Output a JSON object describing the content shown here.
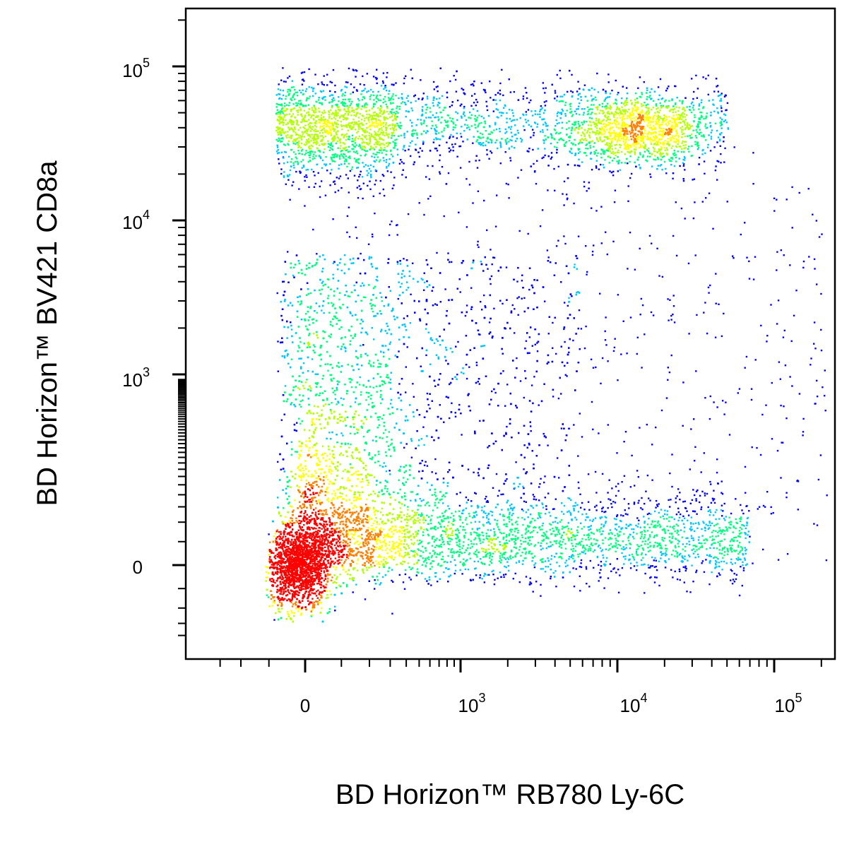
{
  "chart_data": {
    "type": "scatter",
    "title": "",
    "xlabel": "BD Horizon™ RB780  Ly-6C",
    "ylabel": "BD Horizon™ BV421  CD8a",
    "x_scale": "biexponential",
    "y_scale": "biexponential",
    "grid": false,
    "legend": "none",
    "x_ticks": [
      {
        "value": 0,
        "base": "0",
        "exp": ""
      },
      {
        "value": 1000,
        "base": "10",
        "exp": "3"
      },
      {
        "value": 10000,
        "base": "10",
        "exp": "4"
      },
      {
        "value": 100000,
        "base": "10",
        "exp": "5"
      }
    ],
    "y_ticks": [
      {
        "value": 0,
        "base": "0",
        "exp": ""
      },
      {
        "value": 1000,
        "base": "10",
        "exp": "3"
      },
      {
        "value": 10000,
        "base": "10",
        "exp": "4"
      },
      {
        "value": 100000,
        "base": "10",
        "exp": "5"
      }
    ],
    "density_colors": [
      "#0000ff",
      "#00c8ff",
      "#00ff80",
      "#b4ff00",
      "#ffff00",
      "#ff8000",
      "#ff0000"
    ],
    "populations": [
      {
        "x_center": -20,
        "y_center": 0,
        "count": 9000,
        "density": "highest"
      },
      {
        "x_center": 30000,
        "y_center": 40000,
        "count": 2500,
        "density": "medium"
      },
      {
        "x_center": 20,
        "y_center": 40000,
        "count": 1500,
        "density": "medium"
      },
      {
        "x_center": 300,
        "y_center": 30,
        "count": 3500,
        "density": "low"
      },
      {
        "x_center": 5000,
        "y_center": 0,
        "count": 2200,
        "density": "low"
      }
    ]
  }
}
